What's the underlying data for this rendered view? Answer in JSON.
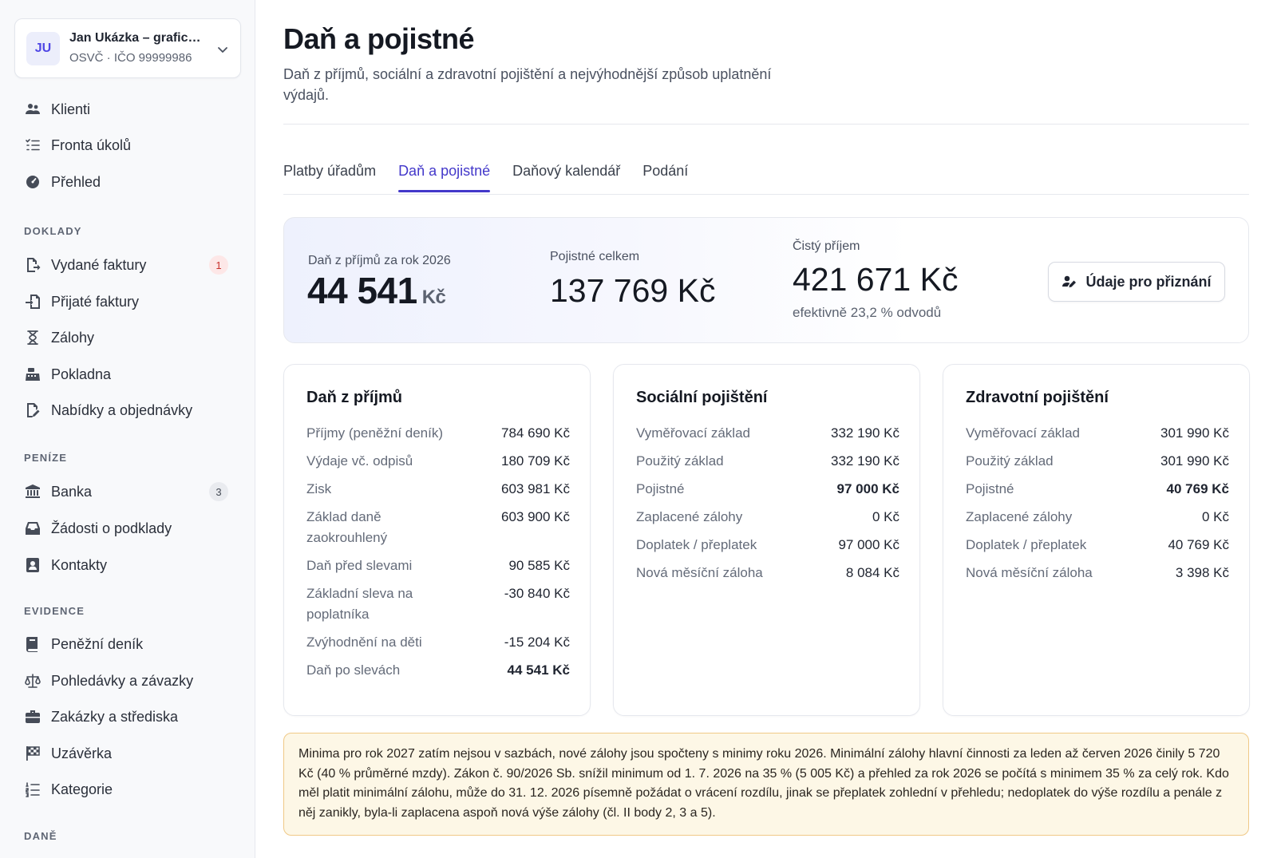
{
  "org": {
    "initials": "JU",
    "name": "Jan Ukázka – grafic…",
    "subtitle": "OSVČ · IČO 99999986"
  },
  "sidebar": {
    "top_items": [
      {
        "label": "Klienti",
        "icon": "users-icon"
      },
      {
        "label": "Fronta úkolů",
        "icon": "task-list-icon"
      },
      {
        "label": "Přehled",
        "icon": "dashboard-gauge-icon"
      }
    ],
    "sections": [
      {
        "title": "DOKLADY",
        "items": [
          {
            "label": "Vydané faktury",
            "icon": "invoice-out-icon",
            "badge": "1"
          },
          {
            "label": "Přijaté faktury",
            "icon": "invoice-in-icon"
          },
          {
            "label": "Zálohy",
            "icon": "hourglass-icon"
          },
          {
            "label": "Pokladna",
            "icon": "cash-register-icon"
          },
          {
            "label": "Nabídky a objednávky",
            "icon": "file-edit-icon"
          }
        ]
      },
      {
        "title": "PENÍZE",
        "items": [
          {
            "label": "Banka",
            "icon": "bank-icon",
            "badge": "3"
          },
          {
            "label": "Žádosti o podklady",
            "icon": "inbox-request-icon"
          },
          {
            "label": "Kontakty",
            "icon": "contact-card-icon"
          }
        ]
      },
      {
        "title": "EVIDENCE",
        "items": [
          {
            "label": "Peněžní deník",
            "icon": "book-icon"
          },
          {
            "label": "Pohledávky a závazky",
            "icon": "scale-icon"
          },
          {
            "label": "Zakázky a střediska",
            "icon": "briefcase-icon"
          },
          {
            "label": "Uzávěrka",
            "icon": "checkered-flag-icon"
          },
          {
            "label": "Kategorie",
            "icon": "numbered-list-icon"
          }
        ]
      },
      {
        "title": "DANĚ",
        "items": []
      }
    ]
  },
  "page": {
    "title": "Daň a pojistné",
    "description": "Daň z příjmů, sociální a zdravotní pojištění a nejvýhodnější způsob uplatnění výdajů."
  },
  "tabs": [
    {
      "label": "Platby úřadům",
      "active": false
    },
    {
      "label": "Daň a pojistné",
      "active": true
    },
    {
      "label": "Daňový kalendář",
      "active": false
    },
    {
      "label": "Podání",
      "active": false
    }
  ],
  "summary": {
    "tax_label": "Daň z příjmů za rok 2026",
    "tax_value": "44 541",
    "tax_unit": "Kč",
    "insurance_label": "Pojistné celkem",
    "insurance_value": "137 769 Kč",
    "net_label": "Čistý příjem",
    "net_value": "421 671 Kč",
    "net_sub": "efektivně 23,2 % odvodů",
    "button_label": "Údaje pro přiznání"
  },
  "cards": [
    {
      "title": "Daň z příjmů",
      "rows": [
        {
          "label": "Příjmy (peněžní deník)",
          "value": "784 690 Kč",
          "bold": false
        },
        {
          "label": "Výdaje vč. odpisů",
          "value": "180 709 Kč",
          "bold": false
        },
        {
          "label": "Zisk",
          "value": "603 981 Kč",
          "bold": false
        },
        {
          "label": "Základ daně zaokrouhlený",
          "value": "603 900 Kč",
          "bold": false
        },
        {
          "label": "Daň před slevami",
          "value": "90 585 Kč",
          "bold": false
        },
        {
          "label": "Základní sleva na poplatníka",
          "value": "-30 840 Kč",
          "bold": false
        },
        {
          "label": "Zvýhodnění na děti",
          "value": "-15 204 Kč",
          "bold": false
        },
        {
          "label": "Daň po slevách",
          "value": "44 541 Kč",
          "bold": true
        }
      ]
    },
    {
      "title": "Sociální pojištění",
      "rows": [
        {
          "label": "Vyměřovací základ",
          "value": "332 190 Kč",
          "bold": false
        },
        {
          "label": "Použitý základ",
          "value": "332 190 Kč",
          "bold": false
        },
        {
          "label": "Pojistné",
          "value": "97 000 Kč",
          "bold": true
        },
        {
          "label": "Zaplacené zálohy",
          "value": "0 Kč",
          "bold": false
        },
        {
          "label": "Doplatek / přeplatek",
          "value": "97 000 Kč",
          "bold": false
        },
        {
          "label": "Nová měsíční záloha",
          "value": "8 084 Kč",
          "bold": false
        }
      ]
    },
    {
      "title": "Zdravotní pojištění",
      "rows": [
        {
          "label": "Vyměřovací základ",
          "value": "301 990 Kč",
          "bold": false
        },
        {
          "label": "Použitý základ",
          "value": "301 990 Kč",
          "bold": false
        },
        {
          "label": "Pojistné",
          "value": "40 769 Kč",
          "bold": true
        },
        {
          "label": "Zaplacené zálohy",
          "value": "0 Kč",
          "bold": false
        },
        {
          "label": "Doplatek / přeplatek",
          "value": "40 769 Kč",
          "bold": false
        },
        {
          "label": "Nová měsíční záloha",
          "value": "3 398 Kč",
          "bold": false
        }
      ]
    }
  ],
  "note": "Minima pro rok 2027 zatím nejsou v sazbách, nové zálohy jsou spočteny s minimy roku 2026. Minimální zálohy hlavní činnosti za leden až červen 2026 činily 5 720 Kč (40 % průměrné mzdy). Zákon č. 90/2026 Sb. snížil minimum od 1. 7. 2026 na 35 % (5 005 Kč) a přehled za rok 2026 se počítá s minimem 35 % za celý rok. Kdo měl platit minimální zálohu, může do 31. 12. 2026 písemně požádat o vrácení rozdílu, jinak se přeplatek zohlední v přehledu; nedoplatek do výše rozdílu a penále z něj zanikly, byla-li zaplacena aspoň nová výše zálohy (čl. II body 2, 3 a 5).",
  "colors": {
    "accent": "#4338ca",
    "badge_red": "#c8312b",
    "note_border": "#f0c987",
    "note_bg": "#fdf7e6"
  }
}
